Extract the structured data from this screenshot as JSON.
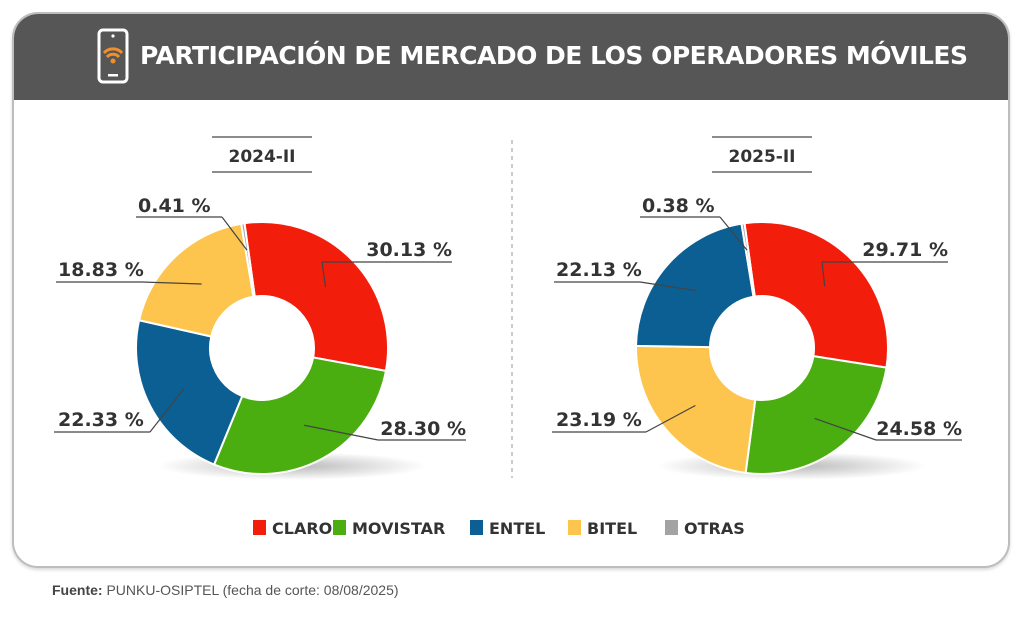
{
  "header": {
    "title": "PARTICIPACIÓN DE MERCADO DE LOS OPERADORES MÓVILES",
    "icon": "smartphone-wifi-icon"
  },
  "colors": {
    "CLARO": "#f21d0b",
    "MOVISTAR": "#4aad10",
    "ENTEL": "#0b5f93",
    "BITEL": "#fdc54d",
    "OTRAS": "#a3a3a3",
    "header_bg": "#565656",
    "wifi_icon": "#f0902a"
  },
  "legend": [
    "CLARO",
    "MOVISTAR",
    "ENTEL",
    "BITEL",
    "OTRAS"
  ],
  "chart_data": [
    {
      "type": "pie",
      "donut": true,
      "title": "2024-II",
      "slices": [
        {
          "name": "CLARO",
          "value": 30.13,
          "label": "30.13 %"
        },
        {
          "name": "MOVISTAR",
          "value": 28.3,
          "label": "28.30 %"
        },
        {
          "name": "ENTEL",
          "value": 22.33,
          "label": "22.33 %"
        },
        {
          "name": "BITEL",
          "value": 18.83,
          "label": "18.83 %"
        },
        {
          "name": "OTRAS",
          "value": 0.41,
          "label": "0.41 %"
        }
      ]
    },
    {
      "type": "pie",
      "donut": true,
      "title": "2025-II",
      "slices": [
        {
          "name": "CLARO",
          "value": 29.71,
          "label": "29.71 %"
        },
        {
          "name": "MOVISTAR",
          "value": 24.58,
          "label": "24.58 %"
        },
        {
          "name": "BITEL",
          "value": 23.19,
          "label": "23.19 %"
        },
        {
          "name": "ENTEL",
          "value": 22.13,
          "label": "22.13 %"
        },
        {
          "name": "OTRAS",
          "value": 0.38,
          "label": "0.38 %"
        }
      ]
    }
  ],
  "source": {
    "label": "Fuente:",
    "text": " PUNKU-OSIPTEL (fecha de corte: 08/08/2025)"
  }
}
